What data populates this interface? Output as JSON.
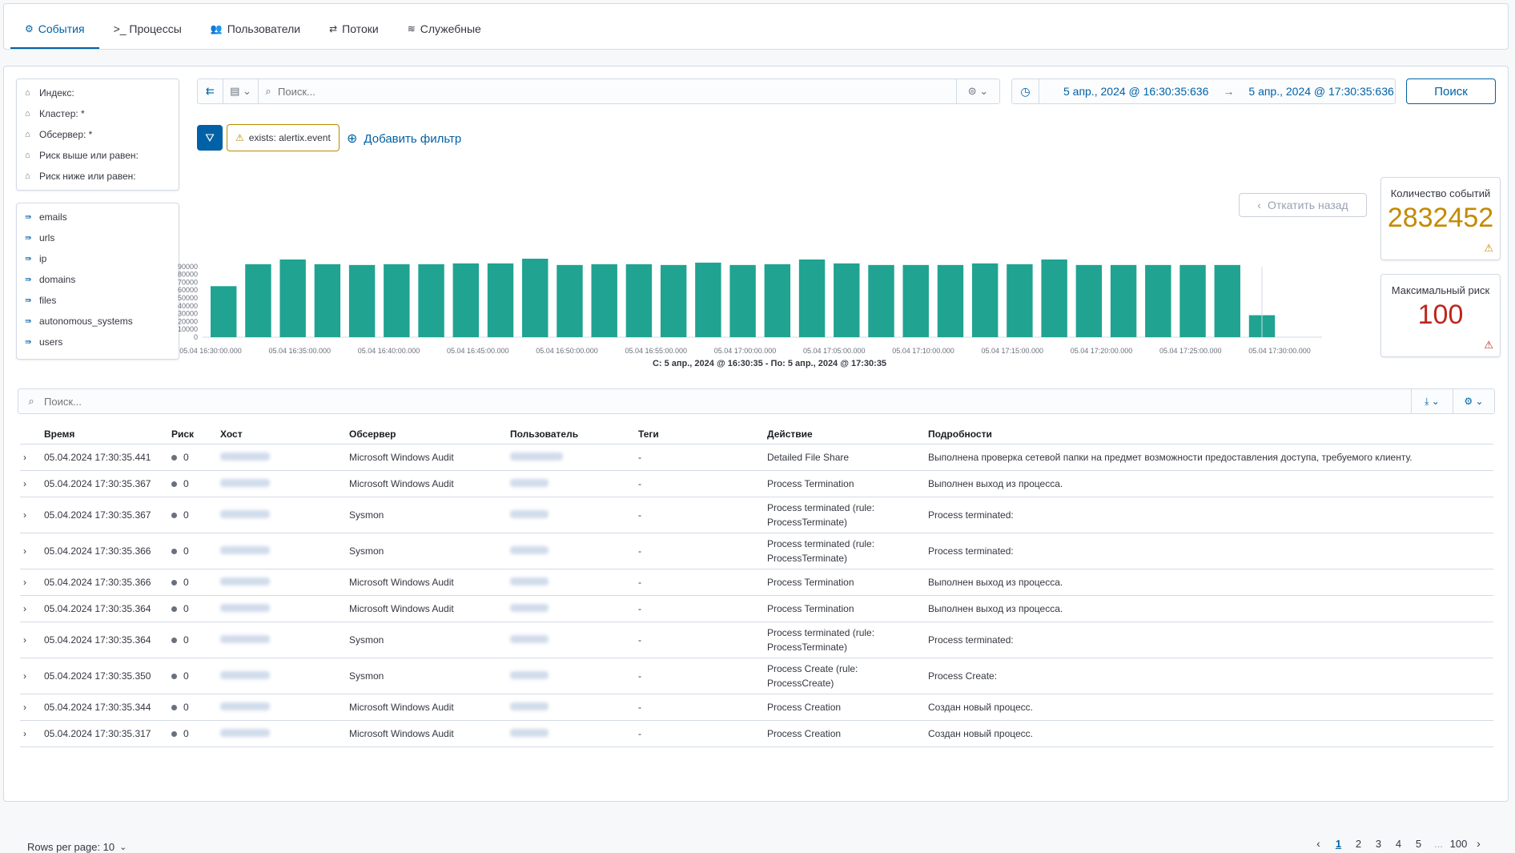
{
  "nav": {
    "tabs": [
      {
        "label": "События",
        "icon": "events-icon"
      },
      {
        "label": ">_ Процессы",
        "icon": "terminal-icon"
      },
      {
        "label": "Пользователи",
        "icon": "users-icon"
      },
      {
        "label": "Потоки",
        "icon": "flows-icon"
      },
      {
        "label": "Служебные",
        "icon": "layers-icon"
      }
    ]
  },
  "filters": [
    {
      "label": "Индекс:"
    },
    {
      "label": "Кластер: *"
    },
    {
      "label": "Обсервер: *"
    },
    {
      "label": "Риск выше или равен:"
    },
    {
      "label": "Риск ниже или равен:"
    }
  ],
  "fields": [
    "emails",
    "urls",
    "ip",
    "domains",
    "files",
    "autonomous_systems",
    "users"
  ],
  "search": {
    "placeholder": "Поиск..."
  },
  "date": {
    "from": "5 апр., 2024 @ 16:30:35:636",
    "to": "5 апр., 2024 @ 17:30:35:636",
    "arrow": "→"
  },
  "search_button": "Поиск",
  "active_filter": "exists: alertix.event",
  "add_filter": "Добавить фильтр",
  "rollback": "Откатить назад",
  "stats": {
    "events_label": "Количество событий",
    "events_value": "2832452",
    "risk_label": "Максимальный риск",
    "risk_value": "100",
    "events_color": "#c48a00",
    "risk_color": "#bd271e"
  },
  "chart_data": {
    "type": "bar",
    "yticks": [
      0,
      10000,
      20000,
      30000,
      40000,
      50000,
      60000,
      70000,
      80000,
      90000
    ],
    "ylim": [
      0,
      100000
    ],
    "xticks": [
      "05.04 16:30:00.000",
      "05.04 16:35:00.000",
      "05.04 16:40:00.000",
      "05.04 16:45:00.000",
      "05.04 16:50:00.000",
      "05.04 16:55:00.000",
      "05.04 17:00:00.000",
      "05.04 17:05:00.000",
      "05.04 17:10:00.000",
      "05.04 17:15:00.000",
      "05.04 17:20:00.000",
      "05.04 17:25:00.000",
      "05.04 17:30:00.000"
    ],
    "values": [
      65000,
      93000,
      99000,
      93000,
      92000,
      93000,
      93000,
      94000,
      94000,
      100000,
      92000,
      93000,
      93000,
      92000,
      95000,
      92000,
      93000,
      99000,
      94000,
      92000,
      92000,
      92000,
      94000,
      93000,
      99000,
      92000,
      92000,
      92000,
      92000,
      92000,
      28000
    ],
    "color": "#20a391",
    "caption": "С: 5 апр., 2024 @ 16:30:35 - По: 5 апр., 2024 @ 17:30:35"
  },
  "table": {
    "search_placeholder": "Поиск...",
    "headers": [
      "Время",
      "Риск",
      "Хост",
      "Обсервер",
      "Пользователь",
      "Теги",
      "Действие",
      "Подробности"
    ],
    "rows": [
      {
        "time": "05.04.2024 17:30:35.441",
        "risk": "0",
        "observer": "Microsoft Windows Audit",
        "tags": "-",
        "action": "Detailed File Share",
        "details": "Выполнена проверка сетевой папки на предмет возможности предоставления доступа, требуемого клиенту."
      },
      {
        "time": "05.04.2024 17:30:35.367",
        "risk": "0",
        "observer": "Microsoft Windows Audit",
        "tags": "-",
        "action": "Process Termination",
        "details": "Выполнен выход из процесса."
      },
      {
        "time": "05.04.2024 17:30:35.367",
        "risk": "0",
        "observer": "Sysmon",
        "tags": "-",
        "action": "Process terminated (rule: ProcessTerminate)",
        "details": "Process terminated:"
      },
      {
        "time": "05.04.2024 17:30:35.366",
        "risk": "0",
        "observer": "Sysmon",
        "tags": "-",
        "action": "Process terminated (rule: ProcessTerminate)",
        "details": "Process terminated:"
      },
      {
        "time": "05.04.2024 17:30:35.366",
        "risk": "0",
        "observer": "Microsoft Windows Audit",
        "tags": "-",
        "action": "Process Termination",
        "details": "Выполнен выход из процесса."
      },
      {
        "time": "05.04.2024 17:30:35.364",
        "risk": "0",
        "observer": "Microsoft Windows Audit",
        "tags": "-",
        "action": "Process Termination",
        "details": "Выполнен выход из процесса."
      },
      {
        "time": "05.04.2024 17:30:35.364",
        "risk": "0",
        "observer": "Sysmon",
        "tags": "-",
        "action": "Process terminated (rule: ProcessTerminate)",
        "details": "Process terminated:"
      },
      {
        "time": "05.04.2024 17:30:35.350",
        "risk": "0",
        "observer": "Sysmon",
        "tags": "-",
        "action": "Process Create (rule: ProcessCreate)",
        "details": "Process Create:"
      },
      {
        "time": "05.04.2024 17:30:35.344",
        "risk": "0",
        "observer": "Microsoft Windows Audit",
        "tags": "-",
        "action": "Process Creation",
        "details": "Создан новый процесс."
      },
      {
        "time": "05.04.2024 17:30:35.317",
        "risk": "0",
        "observer": "Microsoft Windows Audit",
        "tags": "-",
        "action": "Process Creation",
        "details": "Создан новый процесс."
      }
    ]
  },
  "footer": {
    "rows_per_page": "Rows per page: 10",
    "pages": [
      "1",
      "2",
      "3",
      "4",
      "5",
      "...",
      "100"
    ],
    "current_page": "1"
  }
}
